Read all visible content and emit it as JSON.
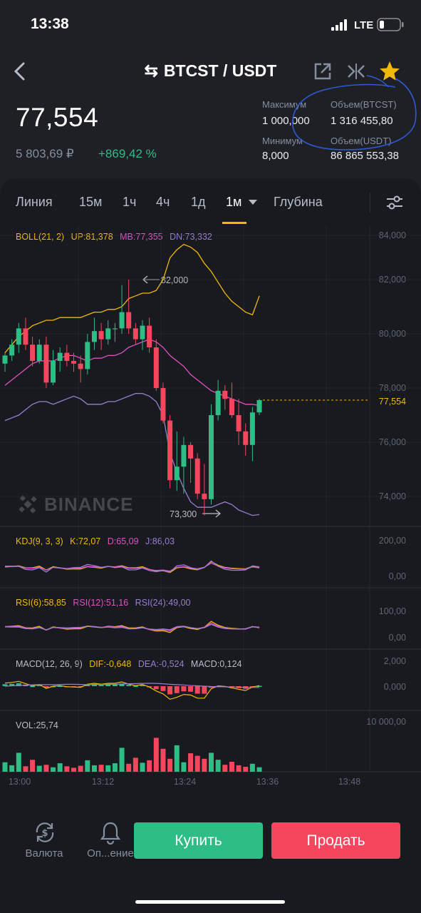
{
  "status_bar": {
    "time": "13:38",
    "network": "LTE"
  },
  "header": {
    "pair": "BTCST / USDT"
  },
  "ticker": {
    "last_price": "77,554",
    "price_rub": "5 803,69 ₽",
    "change": "+869,42 %",
    "stats": [
      {
        "label": "Максимум",
        "value": "1 000,000"
      },
      {
        "label": "Объем(BTCST)",
        "value": "1 316 455,80"
      },
      {
        "label": "Минимум",
        "value": "8,000"
      },
      {
        "label": "Объем(USDT)",
        "value": "86 865 553,38"
      }
    ]
  },
  "tabs": {
    "line": "Линия",
    "m15": "15м",
    "h1": "1ч",
    "h4": "4ч",
    "d1": "1д",
    "m1": "1м",
    "depth": "Глубина"
  },
  "indicators": {
    "boll": {
      "name": "BOLL(21, 2)",
      "up": "UP:81,378",
      "mb": "MB:77,355",
      "dn": "DN:73,332"
    },
    "kdj": {
      "name": "KDJ(9, 3, 3)",
      "k": "K:72,07",
      "d": "D:65,09",
      "j": "J:86,03"
    },
    "rsi": {
      "r6": "RSI(6):58,85",
      "r12": "RSI(12):51,16",
      "r24": "RSI(24):49,00"
    },
    "macd": {
      "name": "MACD(12, 26, 9)",
      "dif": "DIF:-0,648",
      "dea": "DEA:-0,524",
      "macd": "MACD:0,124"
    },
    "vol": {
      "name": "VOL:25,74"
    }
  },
  "axes": {
    "price": [
      "84,000",
      "82,000",
      "80,000",
      "78,000",
      "76,000",
      "74,000"
    ],
    "last_label": "77,554",
    "kdj": [
      "200,00",
      "0,00"
    ],
    "rsi": [
      "100,00",
      "0,00"
    ],
    "macd": [
      "2,000",
      "0,000"
    ],
    "vol": [
      "10 000,00"
    ],
    "time": [
      "13:00",
      "13:12",
      "13:24",
      "13:36",
      "13:48"
    ]
  },
  "annotations": {
    "high": "82,000",
    "low": "73,300"
  },
  "watermark": "BINANCE",
  "bottom_nav": {
    "currency": "Валюта",
    "alerts": "Оп...ение",
    "buy": "Купить",
    "sell": "Продать"
  },
  "colors": {
    "up": "#2ebd85",
    "down": "#f6465d",
    "accent": "#f0b90b",
    "mb": "#e152c4",
    "dn": "#9a7fd1"
  },
  "chart_data": {
    "type": "candlestick",
    "x": [
      "13:00",
      "13:01",
      "13:02",
      "13:03",
      "13:04",
      "13:05",
      "13:06",
      "13:07",
      "13:08",
      "13:09",
      "13:10",
      "13:11",
      "13:12",
      "13:13",
      "13:14",
      "13:15",
      "13:16",
      "13:17",
      "13:18",
      "13:19",
      "13:20",
      "13:21",
      "13:22",
      "13:23",
      "13:24",
      "13:25",
      "13:26",
      "13:27",
      "13:28",
      "13:29",
      "13:30",
      "13:31",
      "13:32",
      "13:33",
      "13:34",
      "13:35",
      "13:36",
      "13:37"
    ],
    "series": [
      {
        "values": [
          [
            78.9,
            79.3,
            78.6,
            79.2
          ],
          [
            79.2,
            79.8,
            79.0,
            79.6
          ],
          [
            79.6,
            80.4,
            79.3,
            80.2
          ],
          [
            80.2,
            80.6,
            79.4,
            79.6
          ],
          [
            79.6,
            79.9,
            78.8,
            79.0
          ],
          [
            79.0,
            79.8,
            78.9,
            79.6
          ],
          [
            79.6,
            79.9,
            78.0,
            78.2
          ],
          [
            78.2,
            79.4,
            78.1,
            79.0
          ],
          [
            79.0,
            79.5,
            78.6,
            79.3
          ],
          [
            79.3,
            79.6,
            78.8,
            79.0
          ],
          [
            79.0,
            79.3,
            78.6,
            78.9
          ],
          [
            78.9,
            79.2,
            78.2,
            78.7
          ],
          [
            78.7,
            80.0,
            78.5,
            79.7
          ],
          [
            79.7,
            80.6,
            79.4,
            80.1
          ],
          [
            80.1,
            80.4,
            79.4,
            79.8
          ],
          [
            79.8,
            80.5,
            79.6,
            80.2
          ],
          [
            80.2,
            80.4,
            79.7,
            80.2
          ],
          [
            80.2,
            81.8,
            80.0,
            80.8
          ],
          [
            80.8,
            82.0,
            80.0,
            80.2
          ],
          [
            80.2,
            80.4,
            79.6,
            79.8
          ],
          [
            79.8,
            80.5,
            79.4,
            80.3
          ],
          [
            80.3,
            80.6,
            79.3,
            79.5
          ],
          [
            79.5,
            79.8,
            77.9,
            78.0
          ],
          [
            78.0,
            78.2,
            76.7,
            76.8
          ],
          [
            76.8,
            77.0,
            74.3,
            74.6
          ],
          [
            74.6,
            76.4,
            74.2,
            75.1
          ],
          [
            75.1,
            76.2,
            74.1,
            75.9
          ],
          [
            75.9,
            76.0,
            74.5,
            75.4
          ],
          [
            75.4,
            75.6,
            73.9,
            74.1
          ],
          [
            74.1,
            75.2,
            73.3,
            73.9
          ],
          [
            73.9,
            77.4,
            73.7,
            77.0
          ],
          [
            77.0,
            78.3,
            76.8,
            77.9
          ],
          [
            77.9,
            78.1,
            77.2,
            77.6
          ],
          [
            77.6,
            78.2,
            76.9,
            77.0
          ],
          [
            77.0,
            77.6,
            75.9,
            76.4
          ],
          [
            76.4,
            76.7,
            75.5,
            75.9
          ],
          [
            75.9,
            77.3,
            75.3,
            77.1
          ],
          [
            77.1,
            77.6,
            77.0,
            77.554
          ]
        ]
      }
    ],
    "boll_up": [
      79.3,
      79.6,
      79.9,
      80.1,
      80.3,
      80.4,
      80.5,
      80.5,
      80.6,
      80.6,
      80.6,
      80.6,
      80.7,
      80.8,
      80.8,
      80.9,
      80.9,
      81.0,
      81.3,
      81.4,
      81.5,
      81.5,
      81.6,
      82.0,
      82.8,
      83.1,
      83.3,
      83.2,
      83.0,
      82.6,
      82.3,
      81.9,
      81.5,
      81.2,
      81.0,
      80.8,
      80.7,
      81.4
    ],
    "boll_mb": [
      78.1,
      78.3,
      78.5,
      78.7,
      78.9,
      79.0,
      79.0,
      79.0,
      79.1,
      79.2,
      79.2,
      79.1,
      79.0,
      79.1,
      79.1,
      79.2,
      79.2,
      79.3,
      79.5,
      79.6,
      79.7,
      79.8,
      79.7,
      79.5,
      79.2,
      79.0,
      78.8,
      78.5,
      78.3,
      78.1,
      77.9,
      77.8,
      77.7,
      77.6,
      77.5,
      77.4,
      77.4,
      77.355
    ],
    "boll_dn": [
      76.8,
      76.9,
      77.0,
      77.2,
      77.4,
      77.5,
      77.5,
      77.4,
      77.5,
      77.6,
      77.7,
      77.6,
      77.4,
      77.4,
      77.4,
      77.5,
      77.5,
      77.6,
      77.7,
      77.8,
      77.8,
      77.7,
      77.5,
      77.0,
      75.6,
      74.9,
      74.3,
      73.8,
      73.6,
      73.6,
      73.6,
      73.7,
      73.8,
      73.7,
      73.5,
      73.4,
      73.3,
      73.332
    ],
    "volume": [
      1900,
      1300,
      3800,
      1100,
      2400,
      1200,
      1400,
      900,
      1700,
      1100,
      800,
      1200,
      2300,
      1300,
      1400,
      1300,
      1700,
      4800,
      1600,
      2800,
      1800,
      2300,
      6800,
      4600,
      2600,
      5300,
      1900,
      3700,
      3200,
      2600,
      3800,
      2400,
      1400,
      2000,
      1300,
      1000,
      1600,
      900
    ],
    "price_ylim": [
      73,
      84.5
    ],
    "x_ticks": [
      "13:00",
      "13:12",
      "13:24",
      "13:36",
      "13:48"
    ]
  }
}
